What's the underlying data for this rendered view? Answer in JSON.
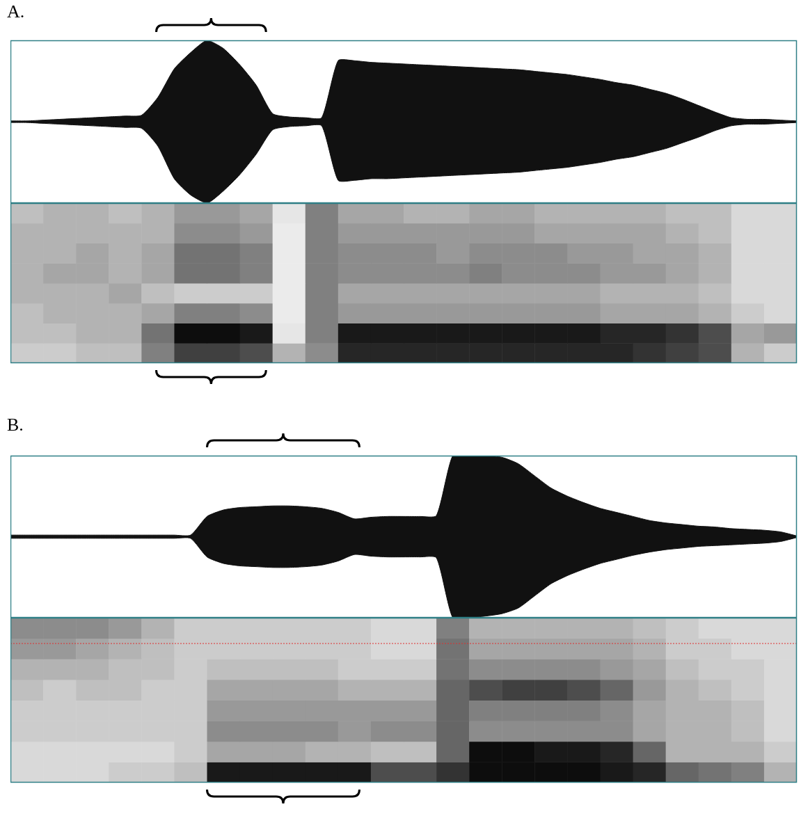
{
  "chart_data": [
    {
      "type": "waveform",
      "title": "A.",
      "color": "#111111",
      "tick_labels": false,
      "xlim": [
        0,
        48
      ],
      "ylim": [
        -1,
        1
      ],
      "bracket": [
        8.9,
        15.6
      ],
      "x": [
        0,
        1,
        2,
        3,
        4,
        5,
        6,
        7,
        8,
        9,
        10,
        11,
        12,
        13,
        14,
        15,
        16,
        17,
        18,
        19,
        20,
        21,
        22,
        23,
        24,
        25,
        26,
        27,
        28,
        29,
        30,
        31,
        32,
        33,
        34,
        35,
        36,
        37,
        38,
        39,
        40,
        41,
        42,
        43,
        44,
        45,
        46,
        47,
        48
      ],
      "upper": [
        0.01,
        0.01,
        0.02,
        0.03,
        0.04,
        0.05,
        0.06,
        0.07,
        0.08,
        0.3,
        0.65,
        0.85,
        1.0,
        0.9,
        0.7,
        0.45,
        0.1,
        0.06,
        0.05,
        0.05,
        0.75,
        0.75,
        0.73,
        0.72,
        0.71,
        0.7,
        0.69,
        0.68,
        0.67,
        0.66,
        0.65,
        0.64,
        0.62,
        0.6,
        0.58,
        0.55,
        0.52,
        0.48,
        0.45,
        0.4,
        0.35,
        0.28,
        0.2,
        0.12,
        0.05,
        0.03,
        0.03,
        0.02,
        0.01
      ],
      "lower": [
        -0.01,
        -0.01,
        -0.02,
        -0.03,
        -0.04,
        -0.05,
        -0.06,
        -0.07,
        -0.08,
        -0.3,
        -0.7,
        -0.9,
        -1.0,
        -0.85,
        -0.65,
        -0.4,
        -0.1,
        -0.06,
        -0.05,
        -0.05,
        -0.72,
        -0.72,
        -0.7,
        -0.7,
        -0.69,
        -0.68,
        -0.67,
        -0.66,
        -0.65,
        -0.64,
        -0.63,
        -0.62,
        -0.6,
        -0.58,
        -0.56,
        -0.53,
        -0.5,
        -0.46,
        -0.43,
        -0.38,
        -0.33,
        -0.26,
        -0.19,
        -0.11,
        -0.05,
        -0.03,
        -0.03,
        -0.02,
        -0.01
      ]
    },
    {
      "type": "spectrogram",
      "tick_labels": false,
      "xlim": [
        0,
        48
      ],
      "ylim": [
        0,
        8
      ],
      "bracket": [
        8.9,
        15.6
      ],
      "cells": [
        [
          0.2,
          0.2,
          0.25,
          0.25,
          0.5,
          0.75,
          0.75,
          0.7,
          0.3,
          0.45,
          0.85,
          0.85,
          0.85,
          0.85,
          0.85,
          0.85,
          0.85,
          0.85,
          0.85,
          0.8,
          0.75,
          0.7,
          0.3,
          0.2
        ],
        [
          0.25,
          0.25,
          0.3,
          0.3,
          0.55,
          0.95,
          0.95,
          0.9,
          0.1,
          0.5,
          0.9,
          0.9,
          0.9,
          0.9,
          0.9,
          0.9,
          0.9,
          0.9,
          0.85,
          0.85,
          0.8,
          0.7,
          0.35,
          0.4
        ],
        [
          0.25,
          0.3,
          0.3,
          0.3,
          0.35,
          0.5,
          0.5,
          0.45,
          0.08,
          0.5,
          0.4,
          0.4,
          0.4,
          0.4,
          0.4,
          0.4,
          0.4,
          0.4,
          0.35,
          0.35,
          0.35,
          0.3,
          0.2,
          0.15
        ],
        [
          0.3,
          0.3,
          0.3,
          0.35,
          0.25,
          0.2,
          0.2,
          0.2,
          0.08,
          0.5,
          0.35,
          0.35,
          0.35,
          0.35,
          0.35,
          0.35,
          0.35,
          0.35,
          0.3,
          0.3,
          0.3,
          0.25,
          0.15,
          0.15
        ],
        [
          0.3,
          0.35,
          0.35,
          0.3,
          0.35,
          0.55,
          0.55,
          0.5,
          0.08,
          0.5,
          0.45,
          0.45,
          0.45,
          0.45,
          0.5,
          0.45,
          0.45,
          0.45,
          0.4,
          0.4,
          0.35,
          0.3,
          0.15,
          0.15
        ],
        [
          0.3,
          0.3,
          0.35,
          0.3,
          0.35,
          0.55,
          0.55,
          0.5,
          0.08,
          0.5,
          0.45,
          0.45,
          0.45,
          0.4,
          0.45,
          0.45,
          0.45,
          0.4,
          0.4,
          0.35,
          0.35,
          0.3,
          0.15,
          0.15
        ],
        [
          0.3,
          0.3,
          0.3,
          0.3,
          0.3,
          0.45,
          0.45,
          0.4,
          0.08,
          0.5,
          0.4,
          0.4,
          0.4,
          0.4,
          0.4,
          0.4,
          0.35,
          0.35,
          0.35,
          0.35,
          0.3,
          0.25,
          0.15,
          0.15
        ],
        [
          0.25,
          0.3,
          0.3,
          0.25,
          0.3,
          0.4,
          0.4,
          0.35,
          0.1,
          0.5,
          0.35,
          0.35,
          0.3,
          0.3,
          0.35,
          0.35,
          0.3,
          0.3,
          0.3,
          0.3,
          0.25,
          0.25,
          0.15,
          0.15
        ]
      ]
    },
    {
      "type": "waveform",
      "title": "B.",
      "color": "#111111",
      "tick_labels": false,
      "xlim": [
        0,
        48
      ],
      "ylim": [
        -1,
        1
      ],
      "bracket": [
        12.0,
        21.3
      ],
      "x": [
        0,
        1,
        2,
        3,
        4,
        5,
        6,
        7,
        8,
        9,
        10,
        11,
        12,
        13,
        14,
        15,
        16,
        17,
        18,
        19,
        20,
        21,
        22,
        23,
        24,
        25,
        26,
        27,
        28,
        29,
        30,
        31,
        32,
        33,
        34,
        35,
        36,
        37,
        38,
        39,
        40,
        41,
        42,
        43,
        44,
        45,
        46,
        47,
        48
      ],
      "upper": [
        0.02,
        0.02,
        0.02,
        0.02,
        0.02,
        0.02,
        0.02,
        0.02,
        0.02,
        0.02,
        0.02,
        0.02,
        0.25,
        0.33,
        0.36,
        0.37,
        0.38,
        0.38,
        0.37,
        0.35,
        0.3,
        0.22,
        0.24,
        0.25,
        0.25,
        0.25,
        0.26,
        1.0,
        1.0,
        1.0,
        0.98,
        0.9,
        0.75,
        0.6,
        0.5,
        0.42,
        0.35,
        0.3,
        0.25,
        0.2,
        0.17,
        0.15,
        0.13,
        0.12,
        0.1,
        0.09,
        0.08,
        0.06,
        0.01
      ],
      "lower": [
        -0.02,
        -0.02,
        -0.02,
        -0.02,
        -0.02,
        -0.02,
        -0.02,
        -0.02,
        -0.02,
        -0.02,
        -0.02,
        -0.02,
        -0.25,
        -0.33,
        -0.36,
        -0.37,
        -0.38,
        -0.38,
        -0.37,
        -0.35,
        -0.3,
        -0.22,
        -0.24,
        -0.25,
        -0.25,
        -0.25,
        -0.26,
        -1.0,
        -1.0,
        -0.98,
        -0.95,
        -0.88,
        -0.73,
        -0.58,
        -0.48,
        -0.4,
        -0.33,
        -0.28,
        -0.23,
        -0.19,
        -0.16,
        -0.14,
        -0.12,
        -0.11,
        -0.1,
        -0.09,
        -0.08,
        -0.06,
        -0.01
      ]
    },
    {
      "type": "spectrogram",
      "tick_labels": false,
      "xlim": [
        0,
        48
      ],
      "ylim": [
        0,
        8
      ],
      "bracket": [
        12.0,
        21.3
      ],
      "hline": 6.75,
      "cells": [
        [
          0.15,
          0.15,
          0.15,
          0.2,
          0.2,
          0.25,
          0.9,
          0.9,
          0.9,
          0.9,
          0.9,
          0.7,
          0.7,
          0.8,
          0.95,
          0.95,
          0.95,
          0.95,
          0.9,
          0.85,
          0.6,
          0.55,
          0.5,
          0.3
        ],
        [
          0.15,
          0.15,
          0.15,
          0.15,
          0.15,
          0.2,
          0.35,
          0.35,
          0.35,
          0.3,
          0.3,
          0.25,
          0.25,
          0.6,
          0.95,
          0.95,
          0.9,
          0.9,
          0.85,
          0.6,
          0.3,
          0.3,
          0.3,
          0.2
        ],
        [
          0.2,
          0.2,
          0.2,
          0.2,
          0.2,
          0.2,
          0.45,
          0.45,
          0.45,
          0.45,
          0.4,
          0.45,
          0.45,
          0.6,
          0.45,
          0.45,
          0.45,
          0.45,
          0.45,
          0.35,
          0.3,
          0.3,
          0.25,
          0.15
        ],
        [
          0.2,
          0.2,
          0.2,
          0.2,
          0.2,
          0.2,
          0.4,
          0.4,
          0.4,
          0.4,
          0.4,
          0.4,
          0.4,
          0.6,
          0.5,
          0.5,
          0.5,
          0.5,
          0.45,
          0.35,
          0.3,
          0.3,
          0.25,
          0.15
        ],
        [
          0.25,
          0.2,
          0.25,
          0.25,
          0.2,
          0.2,
          0.35,
          0.35,
          0.35,
          0.35,
          0.3,
          0.3,
          0.3,
          0.6,
          0.7,
          0.75,
          0.75,
          0.7,
          0.6,
          0.4,
          0.3,
          0.25,
          0.2,
          0.15
        ],
        [
          0.3,
          0.3,
          0.3,
          0.25,
          0.25,
          0.2,
          0.25,
          0.25,
          0.25,
          0.25,
          0.2,
          0.2,
          0.2,
          0.55,
          0.45,
          0.45,
          0.45,
          0.45,
          0.4,
          0.35,
          0.25,
          0.2,
          0.2,
          0.15
        ],
        [
          0.4,
          0.4,
          0.35,
          0.3,
          0.25,
          0.2,
          0.2,
          0.2,
          0.2,
          0.2,
          0.2,
          0.15,
          0.15,
          0.55,
          0.35,
          0.35,
          0.35,
          0.35,
          0.35,
          0.3,
          0.2,
          0.2,
          0.15,
          0.15
        ],
        [
          0.45,
          0.45,
          0.45,
          0.4,
          0.3,
          0.2,
          0.2,
          0.2,
          0.2,
          0.2,
          0.2,
          0.15,
          0.15,
          0.5,
          0.3,
          0.3,
          0.3,
          0.3,
          0.3,
          0.25,
          0.2,
          0.15,
          0.15,
          0.15
        ]
      ]
    }
  ]
}
